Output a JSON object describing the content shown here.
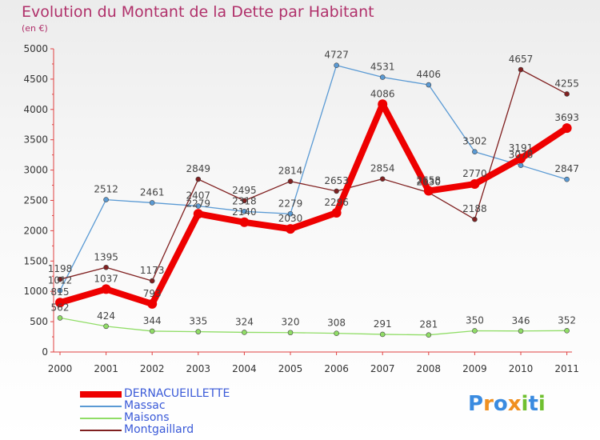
{
  "chart_data": {
    "type": "line",
    "title": "Evolution du Montant de la Dette par Habitant",
    "subtitle": "(en €)",
    "categories": [
      "2000",
      "2001",
      "2002",
      "2003",
      "2004",
      "2005",
      "2006",
      "2007",
      "2008",
      "2009",
      "2010",
      "2011"
    ],
    "ylim": [
      0,
      5000
    ],
    "yticks": [
      0,
      500,
      1000,
      1500,
      2000,
      2500,
      3000,
      3500,
      4000,
      4500,
      5000
    ],
    "grid": false,
    "legend_position": "bottom-left",
    "series": [
      {
        "name": "DERNACUEILLETTE",
        "color": "#ee0000",
        "width": "thick",
        "values": [
          815,
          1037,
          793,
          2279,
          2140,
          2030,
          2296,
          4086,
          2658,
          2770,
          3191,
          3693
        ]
      },
      {
        "name": "Massac",
        "color": "#5a9ad4",
        "width": "thin",
        "values": [
          1012,
          2512,
          2461,
          2407,
          2318,
          2279,
          4727,
          4531,
          4406,
          3302,
          3078,
          2847
        ]
      },
      {
        "name": "Maisons",
        "color": "#90dd66",
        "width": "thin",
        "values": [
          562,
          424,
          344,
          335,
          324,
          320,
          308,
          291,
          281,
          350,
          346,
          352
        ]
      },
      {
        "name": "Montgaillard",
        "color": "#802020",
        "width": "thin",
        "values": [
          1198,
          1395,
          1173,
          2849,
          2495,
          2814,
          2653,
          2854,
          2630,
          2188,
          4657,
          4255
        ]
      }
    ]
  },
  "logo": {
    "text": "Proxiti",
    "letters": [
      "P",
      "r",
      "o",
      "x",
      "i",
      "t",
      "i"
    ],
    "colors": [
      "#3a8be0",
      "#f09020",
      "#3a8be0",
      "#f09020",
      "#70c030",
      "#3a8be0",
      "#70c030"
    ]
  }
}
